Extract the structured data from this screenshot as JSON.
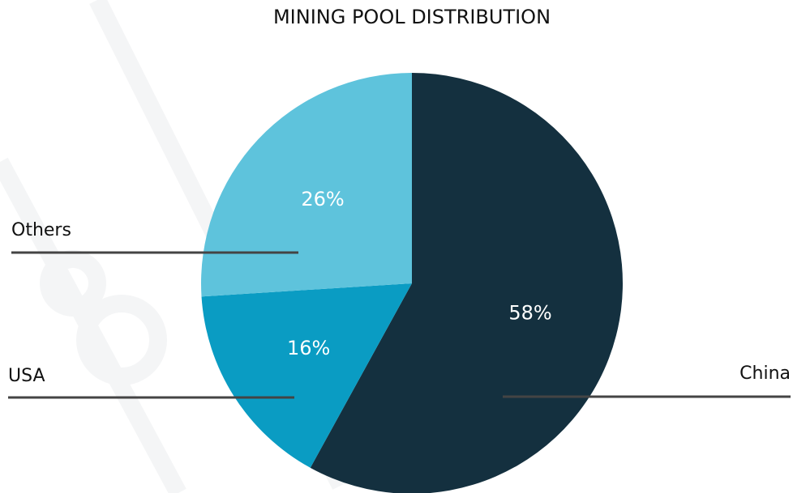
{
  "chart_data": {
    "type": "pie",
    "title": "MINING POOL DISTRIBUTION",
    "categories": [
      "China",
      "USA",
      "Others"
    ],
    "values": [
      58,
      16,
      26
    ],
    "value_labels": [
      "58%",
      "16%",
      "26%"
    ],
    "colors": [
      "#14303f",
      "#0a9cc3",
      "#5ec3dc"
    ]
  }
}
